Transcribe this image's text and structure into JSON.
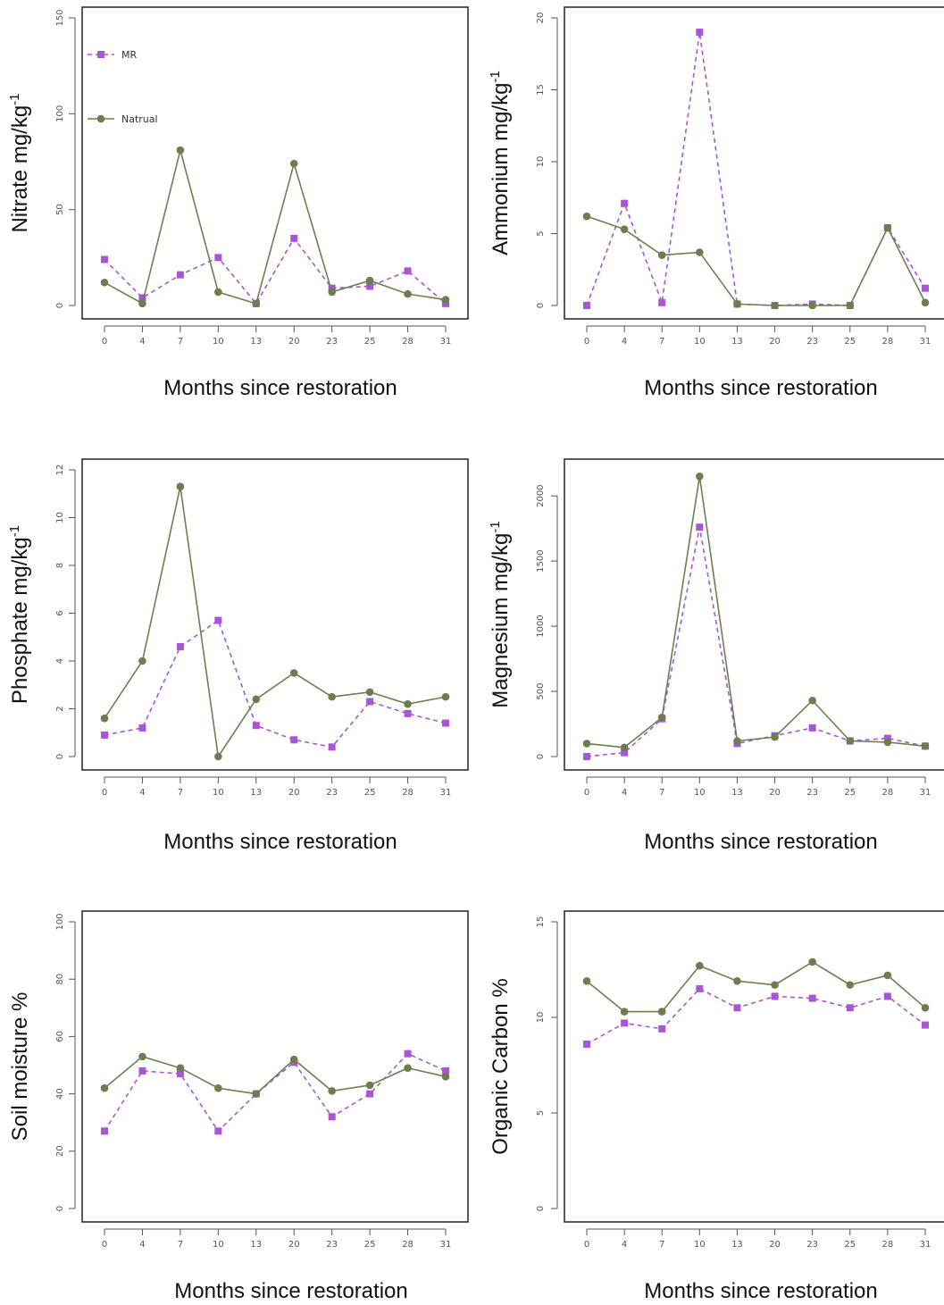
{
  "colors": {
    "mr": "#a855d6",
    "natural": "#6b7f4e",
    "frame": "#222222",
    "tick": "#555555"
  },
  "legend": {
    "mr_label": "MR",
    "natural_label": "Natrual"
  },
  "chart_data": [
    {
      "type": "line",
      "ylabel": "Nitrate mg/kg",
      "ylabel_sup": "-1",
      "xlabel": "Months since restoration",
      "categories": [
        "0",
        "4",
        "7",
        "10",
        "13",
        "20",
        "23",
        "25",
        "28",
        "31"
      ],
      "ylim": [
        0,
        150
      ],
      "yticks": [
        0,
        50,
        100,
        150
      ],
      "legend": true,
      "series": [
        {
          "name": "MR",
          "values": [
            24,
            4,
            16,
            25,
            1,
            35,
            9,
            10,
            18,
            1
          ]
        },
        {
          "name": "Natrual",
          "values": [
            12,
            1,
            81,
            7,
            1,
            74,
            7,
            13,
            6,
            3
          ]
        }
      ]
    },
    {
      "type": "line",
      "ylabel": "Ammonium mg/kg",
      "ylabel_sup": "-1",
      "xlabel": "Months since restoration",
      "categories": [
        "0",
        "4",
        "7",
        "10",
        "13",
        "20",
        "23",
        "25",
        "28",
        "31"
      ],
      "ylim": [
        0,
        20
      ],
      "yticks": [
        0,
        5,
        10,
        15,
        20
      ],
      "legend": false,
      "series": [
        {
          "name": "MR",
          "values": [
            0,
            7.1,
            0.2,
            19,
            0.1,
            0,
            0.1,
            0,
            5.4,
            1.2
          ]
        },
        {
          "name": "Natrual",
          "values": [
            6.2,
            5.3,
            3.5,
            3.7,
            0.1,
            0,
            0,
            0,
            5.4,
            0.2
          ]
        }
      ]
    },
    {
      "type": "line",
      "ylabel": "Phosphate mg/kg",
      "ylabel_sup": "-1",
      "xlabel": "Months since restoration",
      "categories": [
        "0",
        "4",
        "7",
        "10",
        "13",
        "20",
        "23",
        "25",
        "28",
        "31"
      ],
      "ylim": [
        0,
        12
      ],
      "yticks": [
        0,
        2,
        4,
        6,
        8,
        10,
        12
      ],
      "legend": false,
      "series": [
        {
          "name": "MR",
          "values": [
            0.9,
            1.2,
            4.6,
            5.7,
            1.3,
            0.7,
            0.4,
            2.3,
            1.8,
            1.4
          ]
        },
        {
          "name": "Natrual",
          "values": [
            1.6,
            4.0,
            11.3,
            0,
            2.4,
            3.5,
            2.5,
            2.7,
            2.2,
            2.5
          ]
        }
      ]
    },
    {
      "type": "line",
      "ylabel": "Magnesium mg/kg",
      "ylabel_sup": "-1",
      "xlabel": "Months since restoration",
      "categories": [
        "0",
        "4",
        "7",
        "10",
        "13",
        "20",
        "23",
        "25",
        "28",
        "31"
      ],
      "ylim": [
        0,
        2200
      ],
      "yticks": [
        0,
        500,
        1000,
        1500,
        2000
      ],
      "legend": false,
      "series": [
        {
          "name": "MR",
          "values": [
            0,
            30,
            290,
            1760,
            100,
            160,
            220,
            120,
            140,
            80
          ]
        },
        {
          "name": "Natrual",
          "values": [
            100,
            70,
            300,
            2150,
            120,
            150,
            430,
            120,
            110,
            80
          ]
        }
      ]
    },
    {
      "type": "line",
      "ylabel": "Soil moisture %",
      "ylabel_sup": "",
      "xlabel": "Months since restoration",
      "categories": [
        "0",
        "4",
        "7",
        "10",
        "13",
        "20",
        "23",
        "25",
        "28",
        "31"
      ],
      "ylim": [
        0,
        100
      ],
      "yticks": [
        0,
        20,
        40,
        60,
        80,
        100
      ],
      "legend": false,
      "series": [
        {
          "name": "MR",
          "values": [
            27,
            48,
            47,
            27,
            40,
            51,
            32,
            40,
            54,
            48
          ]
        },
        {
          "name": "Natrual",
          "values": [
            42,
            53,
            49,
            42,
            40,
            52,
            41,
            43,
            49,
            46
          ]
        }
      ]
    },
    {
      "type": "line",
      "ylabel": "Organic Carbon %",
      "ylabel_sup": "",
      "xlabel": "Months since restoration",
      "categories": [
        "0",
        "4",
        "7",
        "10",
        "13",
        "20",
        "23",
        "25",
        "28",
        "31"
      ],
      "ylim": [
        0,
        15
      ],
      "yticks": [
        0,
        5,
        10,
        15
      ],
      "legend": false,
      "series": [
        {
          "name": "MR",
          "values": [
            8.6,
            9.7,
            9.4,
            11.5,
            10.5,
            11.1,
            11.0,
            10.5,
            11.1,
            9.6
          ]
        },
        {
          "name": "Natrual",
          "values": [
            11.9,
            10.3,
            10.3,
            12.7,
            11.9,
            11.7,
            12.9,
            11.7,
            12.2,
            10.5
          ]
        }
      ]
    }
  ]
}
